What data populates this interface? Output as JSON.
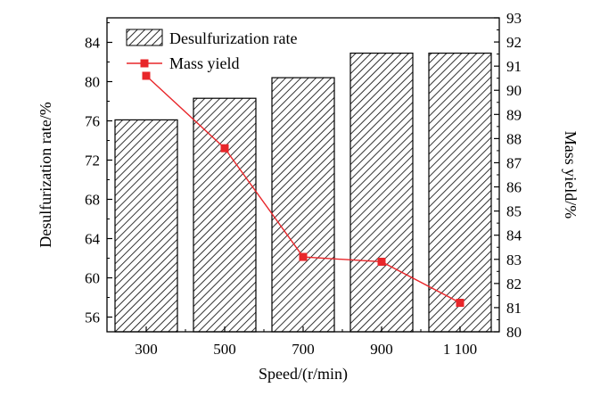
{
  "chart_data": {
    "type": "bar+line",
    "categories": [
      "300",
      "500",
      "700",
      "900",
      "1 100"
    ],
    "series": [
      {
        "name": "Desulfurization rate",
        "type": "bar",
        "axis": "left",
        "values": [
          76.1,
          78.3,
          80.4,
          82.9,
          82.9
        ]
      },
      {
        "name": "Mass yield",
        "type": "line",
        "axis": "right",
        "values": [
          90.6,
          87.6,
          83.1,
          82.9,
          81.2
        ],
        "color": "#e8262a"
      }
    ],
    "xlabel": "Speed/(r/min)",
    "ylabel_left": "Desulfurization rate/%",
    "ylabel_right": "Mass yield/%",
    "ylim_left": [
      54.5,
      86.5
    ],
    "yticks_left": [
      "56",
      "60",
      "64",
      "68",
      "72",
      "76",
      "80",
      "84"
    ],
    "ylim_right": [
      80,
      93
    ],
    "yticks_right": [
      "80",
      "81",
      "82",
      "83",
      "84",
      "85",
      "86",
      "87",
      "88",
      "89",
      "90",
      "91",
      "92",
      "93"
    ],
    "bar_fill": "diagonal-hatch",
    "legend_position": "top-left",
    "grid": false
  }
}
